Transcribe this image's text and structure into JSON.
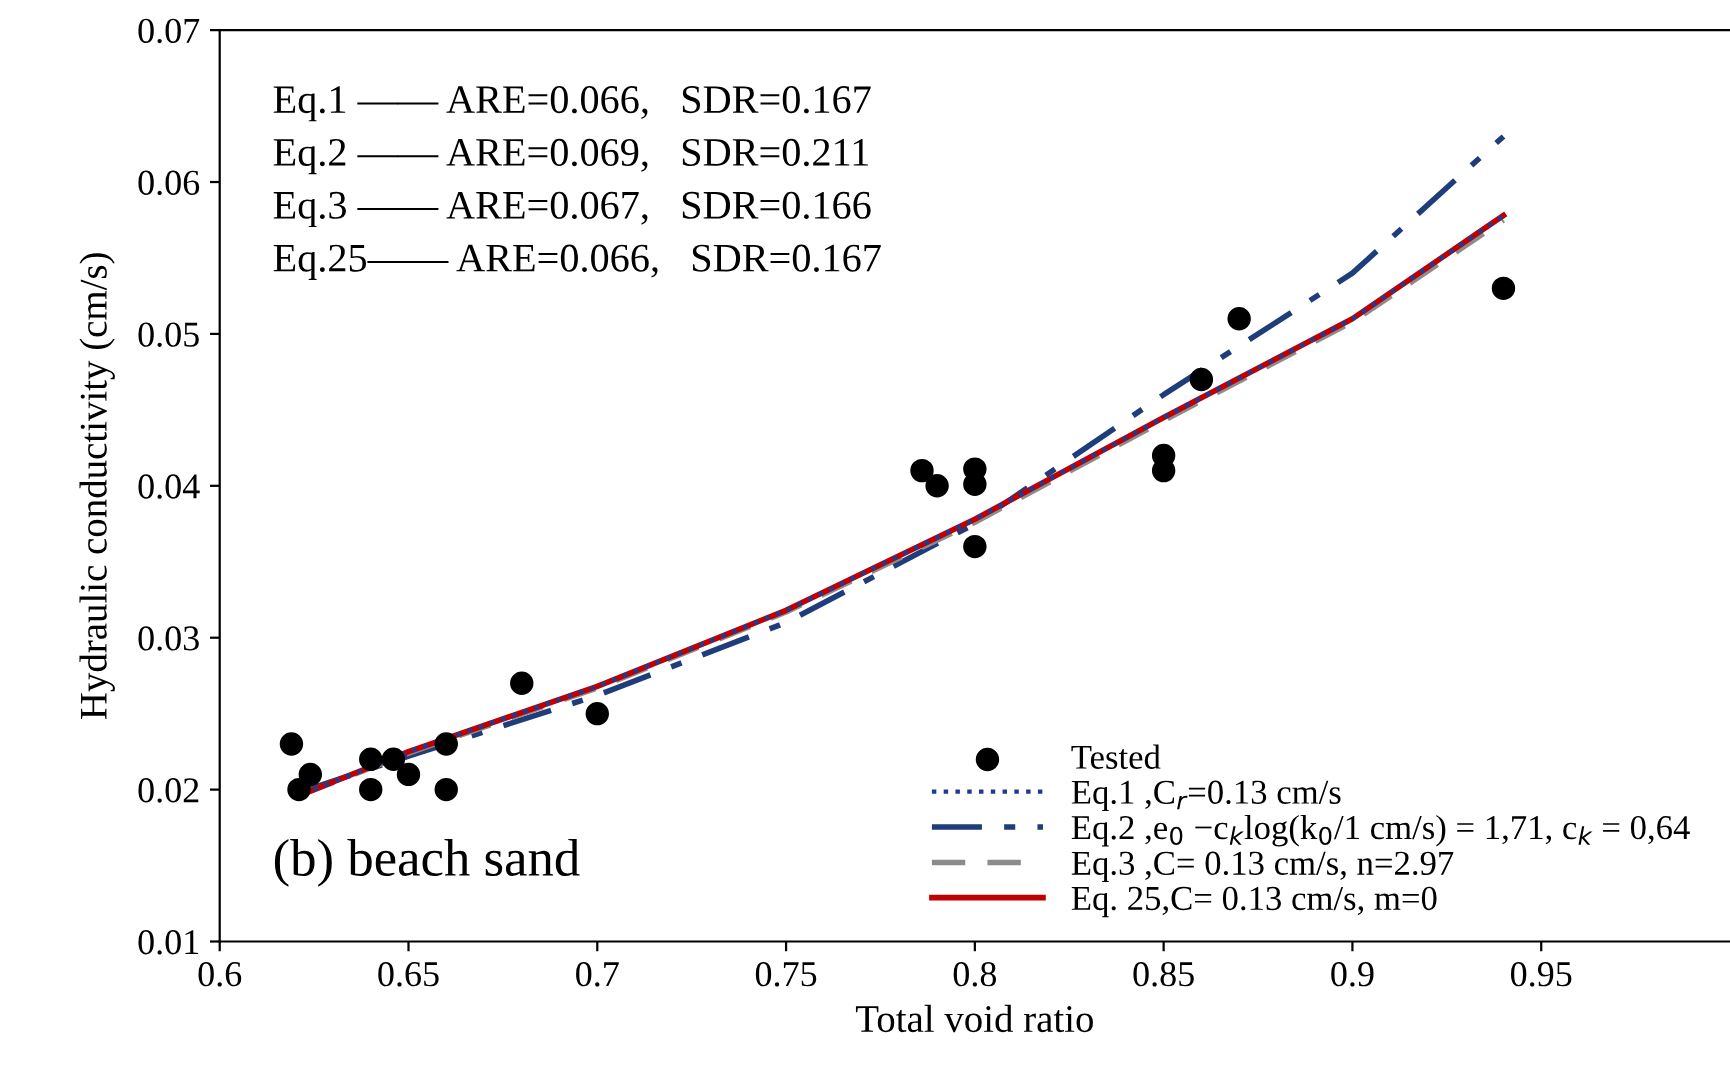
{
  "chart_data": {
    "type": "scatter",
    "xlabel": "Total void ratio",
    "ylabel": "Hydraulic conductivity (cm/s)",
    "xlim": [
      0.6,
      1.0
    ],
    "ylim": [
      0.01,
      0.07
    ],
    "xticks": [
      0.6,
      0.65,
      0.7,
      0.75,
      0.8,
      0.85,
      0.9,
      0.95
    ],
    "yticks": [
      0.01,
      0.02,
      0.03,
      0.04,
      0.05,
      0.06,
      0.07
    ],
    "grid": false,
    "legend": "bottom right",
    "annotations": [
      "Eq.1 —— ARE=0.066,   SDR=0.167",
      "Eq.2 —— ARE=0.069,   SDR=0.211",
      "Eq.3 —— ARE=0.067,   SDR=0.166",
      "Eq.25—— ARE=0.066,   SDR=0.167",
      "(b) beach sand"
    ],
    "series": [
      {
        "name": "Tested",
        "marker": "circle",
        "color": "#000000",
        "x": [
          0.619,
          0.621,
          0.624,
          0.64,
          0.64,
          0.646,
          0.65,
          0.66,
          0.66,
          0.68,
          0.7,
          0.786,
          0.79,
          0.8,
          0.8,
          0.8,
          0.85,
          0.85,
          0.86,
          0.87,
          0.94
        ],
        "values": [
          0.023,
          0.02,
          0.021,
          0.022,
          0.02,
          0.022,
          0.021,
          0.023,
          0.02,
          0.027,
          0.025,
          0.041,
          0.04,
          0.0411,
          0.0401,
          0.036,
          0.042,
          0.041,
          0.047,
          0.051,
          0.053
        ]
      },
      {
        "name": "Eq.1 ,C$_{r}$=0.13 cm/s",
        "type": "line",
        "line_style": "dotted",
        "color": "#1f3a93",
        "x": [
          0.622,
          0.65,
          0.7,
          0.75,
          0.8,
          0.85,
          0.9,
          0.94
        ],
        "values": [
          0.0197,
          0.0225,
          0.0268,
          0.0318,
          0.0378,
          0.0445,
          0.051,
          0.0578
        ]
      },
      {
        "name": "Eq.2 ,e$_{0}$ −c$_{k}$log(k$_{0}$/1 cm/s) = 1,71, c$_{k}$ = 0,64",
        "type": "line",
        "line_style": "dashdot",
        "color": "#1f3d7a",
        "x": [
          0.622,
          0.65,
          0.7,
          0.75,
          0.8,
          0.85,
          0.9,
          0.94
        ],
        "values": [
          0.0199,
          0.0222,
          0.0262,
          0.031,
          0.0375,
          0.046,
          0.054,
          0.063
        ]
      },
      {
        "name": "Eq.3 ,C= 0.13 cm/s, n=2.97",
        "type": "line",
        "line_style": "dashed",
        "color": "#8c8c8c",
        "x": [
          0.622,
          0.65,
          0.7,
          0.75,
          0.8,
          0.85,
          0.9,
          0.94
        ],
        "values": [
          0.0197,
          0.0224,
          0.0267,
          0.0317,
          0.0376,
          0.0443,
          0.0508,
          0.0575
        ]
      },
      {
        "name": "Eq. 25,C= 0.13 cm/s, m=0",
        "type": "line",
        "line_style": "solid",
        "color": "#c00000",
        "x": [
          0.622,
          0.65,
          0.7,
          0.75,
          0.8,
          0.85,
          0.9,
          0.94
        ],
        "values": [
          0.0197,
          0.0225,
          0.0268,
          0.0318,
          0.0378,
          0.0445,
          0.051,
          0.0578
        ]
      }
    ]
  }
}
